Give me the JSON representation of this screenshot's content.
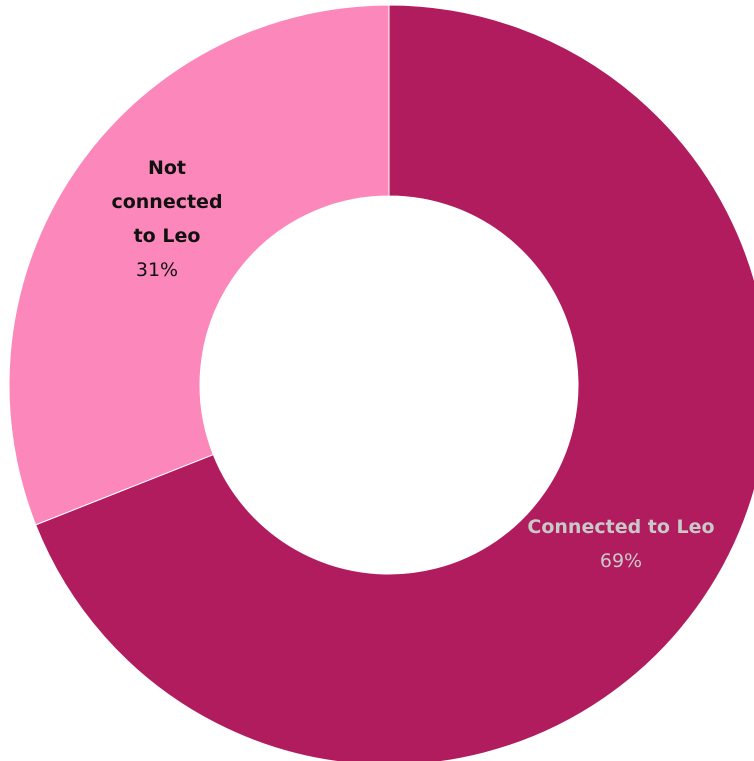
{
  "chart_data": {
    "type": "pie",
    "style": "donut",
    "slices": [
      {
        "label": "Connected to Leo",
        "value": 69,
        "display": "69%",
        "color": "#B01C5E",
        "label_color": "#C9C9C9"
      },
      {
        "label": "Not connected to Leo",
        "value": 31,
        "display": "31%",
        "color": "#FB87BB",
        "label_color": "#111111"
      }
    ]
  }
}
